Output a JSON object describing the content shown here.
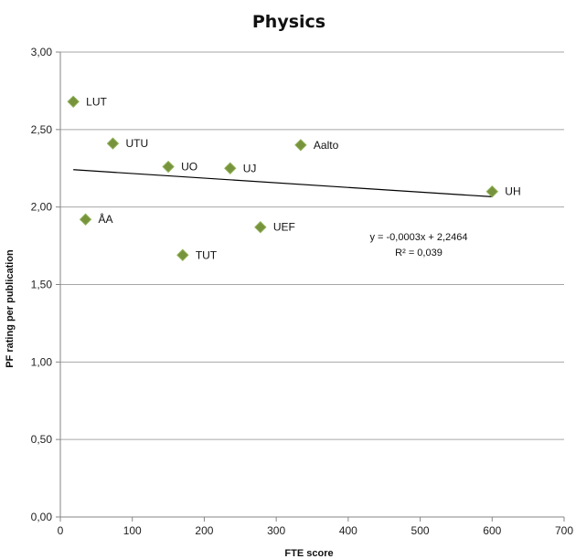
{
  "chart_data": {
    "type": "scatter",
    "title": "Physics",
    "xlabel": "FTE score",
    "ylabel": "PF rating per publication",
    "xlim": [
      0,
      700
    ],
    "ylim": [
      0,
      3
    ],
    "x_ticks": [
      "0",
      "100",
      "200",
      "300",
      "400",
      "500",
      "600",
      "700"
    ],
    "y_ticks": [
      "0,00",
      "0,50",
      "1,00",
      "1,50",
      "2,00",
      "2,50",
      "3,00"
    ],
    "grid": "horizontal",
    "marker": "diamond",
    "marker_color": "#77933c",
    "points": [
      {
        "label": "LUT",
        "x": 18,
        "y": 2.68
      },
      {
        "label": "UTU",
        "x": 73,
        "y": 2.41
      },
      {
        "label": "UO",
        "x": 150,
        "y": 2.26
      },
      {
        "label": "UJ",
        "x": 236,
        "y": 2.25
      },
      {
        "label": "Aalto",
        "x": 334,
        "y": 2.4
      },
      {
        "label": "UH",
        "x": 600,
        "y": 2.1
      },
      {
        "label": "ÅA",
        "x": 35,
        "y": 1.92
      },
      {
        "label": "UEF",
        "x": 278,
        "y": 1.87
      },
      {
        "label": "TUT",
        "x": 170,
        "y": 1.69
      }
    ],
    "trendline": {
      "slope": -0.0003,
      "intercept": 2.2464,
      "x_range": [
        18,
        600
      ],
      "equation": "y = -0,0003x + 2,2464",
      "r2_text": "R² = 0,039"
    }
  }
}
